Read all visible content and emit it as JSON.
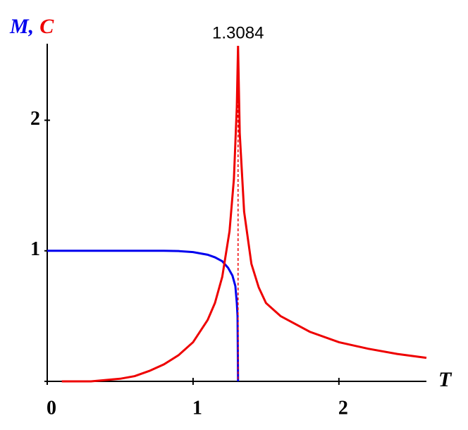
{
  "chart_data": {
    "type": "line",
    "xlabel": "T",
    "ylabel": [
      "M,",
      "C"
    ],
    "x_axis_at": 0,
    "xlim": [
      0,
      2.6
    ],
    "ylim": [
      0,
      2.57
    ],
    "xticks": [
      0,
      1,
      2
    ],
    "yticks": [
      1,
      2
    ],
    "annotation": {
      "x": 1.3084
    },
    "series": [
      {
        "name": "M",
        "color": "#0000ee",
        "x": [
          0,
          0.2,
          0.4,
          0.6,
          0.8,
          0.9,
          1.0,
          1.1,
          1.15,
          1.2,
          1.24,
          1.27,
          1.29,
          1.3,
          1.305,
          1.3084
        ],
        "values": [
          1,
          1,
          1,
          1,
          1,
          0.998,
          0.99,
          0.97,
          0.95,
          0.92,
          0.87,
          0.81,
          0.73,
          0.6,
          0.5,
          0
        ]
      },
      {
        "name": "C",
        "color": "#ee0000",
        "x": [
          0.1,
          0.3,
          0.4,
          0.5,
          0.6,
          0.7,
          0.8,
          0.9,
          1.0,
          1.1,
          1.15,
          1.2,
          1.25,
          1.28,
          1.3,
          1.3084,
          1.32,
          1.35,
          1.4,
          1.45,
          1.5,
          1.6,
          1.8,
          2.0,
          2.2,
          2.4,
          2.6
        ],
        "values": [
          0,
          0,
          0.01,
          0.02,
          0.04,
          0.08,
          0.13,
          0.2,
          0.3,
          0.47,
          0.6,
          0.8,
          1.15,
          1.55,
          2.1,
          2.57,
          1.9,
          1.3,
          0.9,
          0.72,
          0.6,
          0.5,
          0.38,
          0.3,
          0.25,
          0.21,
          0.18
        ]
      }
    ]
  }
}
